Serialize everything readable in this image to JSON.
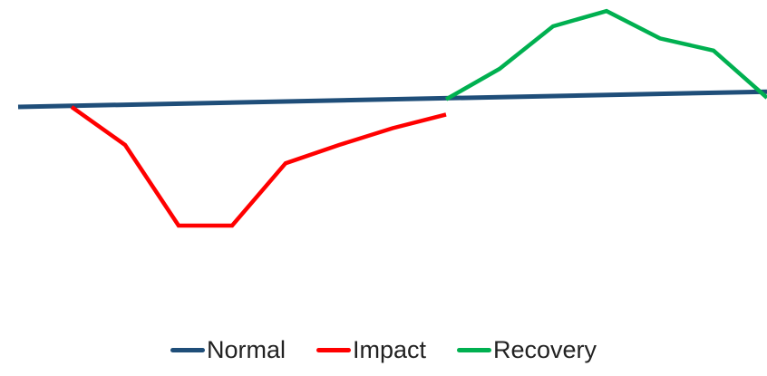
{
  "chart_data": {
    "type": "line",
    "title": "",
    "xlabel": "",
    "ylabel": "",
    "x": [
      0,
      1,
      2,
      3,
      4,
      5,
      6,
      7,
      8,
      9,
      10,
      11,
      12,
      13,
      14
    ],
    "ylim": [
      -1.4,
      1.0
    ],
    "xlim": [
      0,
      14
    ],
    "grid": false,
    "legend_position": "bottom",
    "series": [
      {
        "name": "Normal",
        "color": "#1f4e79",
        "points": [
          [
            0,
            0.0
          ],
          [
            14,
            0.1
          ]
        ]
      },
      {
        "name": "Impact",
        "color": "#ff0000",
        "points": [
          [
            1,
            0.0
          ],
          [
            2,
            -0.25
          ],
          [
            3,
            -0.78
          ],
          [
            4,
            -0.78
          ],
          [
            5,
            -0.37
          ],
          [
            6,
            -0.25
          ],
          [
            7,
            -0.14
          ],
          [
            8,
            -0.05
          ]
        ]
      },
      {
        "name": "Recovery",
        "color": "#00b050",
        "points": [
          [
            8,
            0.05
          ],
          [
            9,
            0.25
          ],
          [
            10,
            0.53
          ],
          [
            11,
            0.63
          ],
          [
            12,
            0.45
          ],
          [
            13,
            0.37
          ],
          [
            14,
            0.06
          ]
        ]
      }
    ]
  }
}
